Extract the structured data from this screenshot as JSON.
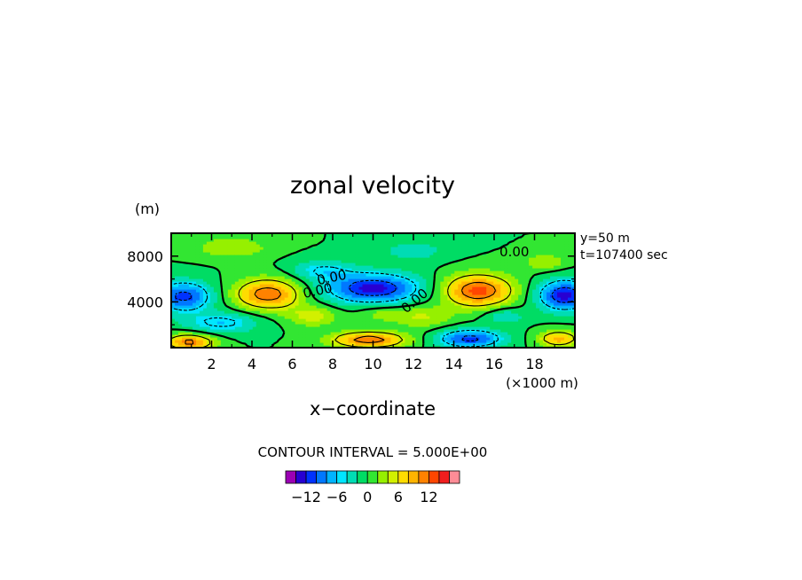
{
  "chart_data": {
    "type": "heatmap",
    "title": "zonal velocity",
    "xlabel": "x−coordinate",
    "x_unit": "(×1000 m)",
    "y_unit": "(m)",
    "annotations": [
      "y=50 m",
      "t=107400 sec"
    ],
    "contour_interval_text": "CONTOUR INTERVAL = 5.000E+00",
    "contour_labels": [
      "0.00",
      "0.00",
      "0.00",
      "0.00"
    ],
    "xlim": [
      0,
      20
    ],
    "ylim": [
      0,
      10000
    ],
    "x_ticks": [
      2,
      4,
      6,
      8,
      10,
      12,
      14,
      16,
      18
    ],
    "x_tick_labels": [
      "2",
      "4",
      "6",
      "8",
      "10",
      "12",
      "14",
      "16",
      "18"
    ],
    "y_ticks": [
      4000,
      8000
    ],
    "y_tick_labels": [
      "4000",
      "8000"
    ],
    "colorbar": {
      "levels": [
        -16,
        -14,
        -12,
        -10,
        -8,
        -6,
        -4,
        -2,
        0,
        2,
        4,
        6,
        8,
        10,
        12,
        14,
        16
      ],
      "colors": [
        "#9b00b4",
        "#2800d2",
        "#0032ff",
        "#0078ff",
        "#00b4ff",
        "#00e6ff",
        "#00dcb4",
        "#00dc64",
        "#32e632",
        "#96f000",
        "#d2f000",
        "#ffdc00",
        "#ffb400",
        "#ff8200",
        "#ff4600",
        "#f01e1e",
        "#ff8c96"
      ],
      "tick_values": [
        -12,
        -6,
        0,
        6,
        12
      ],
      "tick_labels": [
        "−12",
        "−6",
        "0",
        "6",
        "12"
      ]
    },
    "features": [
      {
        "x": 0.6,
        "y": 4500,
        "sx": 1.4,
        "sy": 1300,
        "amp": -11
      },
      {
        "x": 0.9,
        "y": 500,
        "sx": 1.2,
        "sy": 700,
        "amp": 11
      },
      {
        "x": 4.8,
        "y": 4700,
        "sx": 1.6,
        "sy": 1300,
        "amp": 12
      },
      {
        "x": 2.5,
        "y": 2200,
        "sx": 1.8,
        "sy": 900,
        "amp": -6
      },
      {
        "x": 7.5,
        "y": 6800,
        "sx": 1.5,
        "sy": 900,
        "amp": -5
      },
      {
        "x": 10.0,
        "y": 5200,
        "sx": 2.3,
        "sy": 1300,
        "amp": -13
      },
      {
        "x": 9.8,
        "y": 700,
        "sx": 1.8,
        "sy": 700,
        "amp": 12
      },
      {
        "x": 7.0,
        "y": 2800,
        "sx": 1.2,
        "sy": 900,
        "amp": 5
      },
      {
        "x": 12.5,
        "y": 2700,
        "sx": 1.4,
        "sy": 1000,
        "amp": 4
      },
      {
        "x": 15.2,
        "y": 5000,
        "sx": 1.7,
        "sy": 1400,
        "amp": 13
      },
      {
        "x": 14.8,
        "y": 800,
        "sx": 1.6,
        "sy": 800,
        "amp": -11
      },
      {
        "x": 19.5,
        "y": 4600,
        "sx": 1.3,
        "sy": 1300,
        "amp": -13
      },
      {
        "x": 19.2,
        "y": 800,
        "sx": 1.0,
        "sy": 700,
        "amp": 9
      },
      {
        "x": 18.5,
        "y": 7500,
        "sx": 1.0,
        "sy": 700,
        "amp": 4
      },
      {
        "x": 3.0,
        "y": 8800,
        "sx": 1.8,
        "sy": 900,
        "amp": 4
      },
      {
        "x": 12.0,
        "y": 8500,
        "sx": 1.8,
        "sy": 1000,
        "amp": -3
      },
      {
        "x": 16.5,
        "y": 2800,
        "sx": 1.0,
        "sy": 700,
        "amp": -4
      },
      {
        "x": 10.5,
        "y": 3000,
        "sx": 1.3,
        "sy": 700,
        "amp": 3
      }
    ]
  }
}
